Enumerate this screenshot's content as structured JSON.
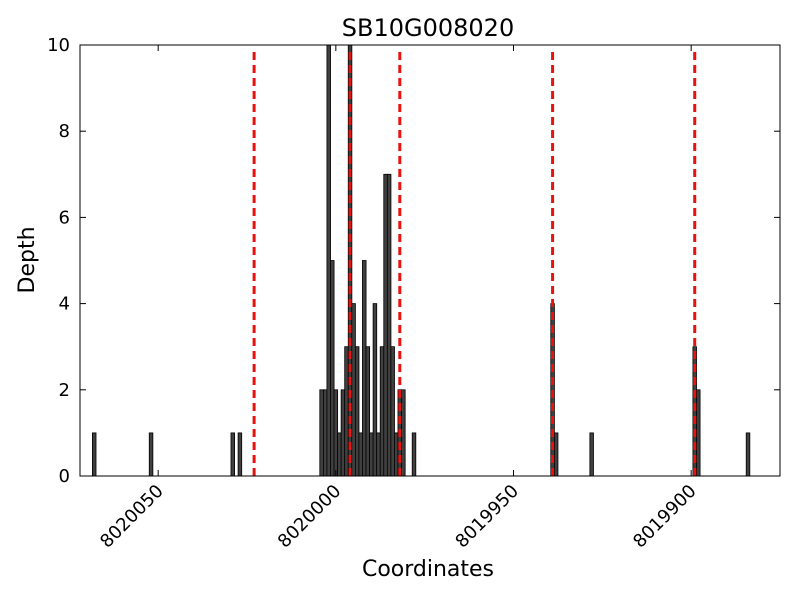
{
  "chart_data": {
    "type": "bar",
    "title": "SB10G008020",
    "xlabel": "Coordinates",
    "ylabel": "Depth",
    "xlim": [
      8020072,
      8019875
    ],
    "x_reversed": true,
    "ylim": [
      0,
      10
    ],
    "grid": false,
    "bar_color": "#404040",
    "bar_edge_color": "#000000",
    "xticks": [
      8020050,
      8020000,
      8019950,
      8019900
    ],
    "xtick_labels": [
      "8020050",
      "8020000",
      "8019950",
      "8019900"
    ],
    "yticks": [
      0,
      2,
      4,
      6,
      8,
      10
    ],
    "ytick_labels": [
      "0",
      "2",
      "4",
      "6",
      "8",
      "10"
    ],
    "bars": [
      {
        "x": 8020068,
        "depth": 1
      },
      {
        "x": 8020052,
        "depth": 1
      },
      {
        "x": 8020029,
        "depth": 1
      },
      {
        "x": 8020027,
        "depth": 1
      },
      {
        "x": 8020004,
        "depth": 2
      },
      {
        "x": 8020003,
        "depth": 2
      },
      {
        "x": 8020002,
        "depth": 10
      },
      {
        "x": 8020001,
        "depth": 5
      },
      {
        "x": 8020000,
        "depth": 2
      },
      {
        "x": 8019999,
        "depth": 1
      },
      {
        "x": 8019998,
        "depth": 2
      },
      {
        "x": 8019997,
        "depth": 3
      },
      {
        "x": 8019996,
        "depth": 10
      },
      {
        "x": 8019995,
        "depth": 4
      },
      {
        "x": 8019994,
        "depth": 3
      },
      {
        "x": 8019993,
        "depth": 1
      },
      {
        "x": 8019992,
        "depth": 5
      },
      {
        "x": 8019991,
        "depth": 3
      },
      {
        "x": 8019990,
        "depth": 1
      },
      {
        "x": 8019989,
        "depth": 4
      },
      {
        "x": 8019988,
        "depth": 1
      },
      {
        "x": 8019987,
        "depth": 3
      },
      {
        "x": 8019986,
        "depth": 7
      },
      {
        "x": 8019985,
        "depth": 7
      },
      {
        "x": 8019984,
        "depth": 3
      },
      {
        "x": 8019983,
        "depth": 1
      },
      {
        "x": 8019982,
        "depth": 2
      },
      {
        "x": 8019981,
        "depth": 2
      },
      {
        "x": 8019978,
        "depth": 1
      },
      {
        "x": 8019939,
        "depth": 4
      },
      {
        "x": 8019938,
        "depth": 1
      },
      {
        "x": 8019928,
        "depth": 1
      },
      {
        "x": 8019899,
        "depth": 3
      },
      {
        "x": 8019898,
        "depth": 2
      },
      {
        "x": 8019884,
        "depth": 1
      }
    ],
    "vlines": {
      "color": "#e8130f",
      "style": "dashed",
      "x": [
        8020023,
        8019996,
        8019982,
        8019939,
        8019899
      ],
      "top": 10
    }
  }
}
